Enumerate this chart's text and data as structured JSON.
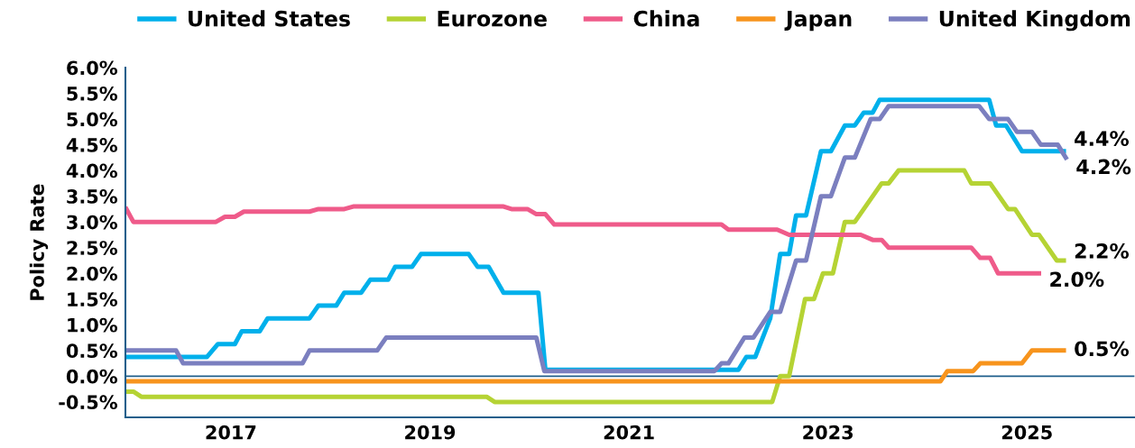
{
  "chart_data": {
    "type": "line",
    "ylabel": "Policy Rate",
    "xlim": [
      2015.94,
      2026.08
    ],
    "xticks": [
      2017,
      2019,
      2021,
      2023,
      2025
    ],
    "ylim": [
      -0.8,
      6.0
    ],
    "yticks": [
      {
        "value": -0.5,
        "label": "-0.5%"
      },
      {
        "value": 0,
        "label": "0.0%"
      },
      {
        "value": 0.5,
        "label": "0.5%"
      },
      {
        "value": 1.0,
        "label": "1.0%"
      },
      {
        "value": 1.5,
        "label": "1.5%"
      },
      {
        "value": 2.0,
        "label": "2.0%"
      },
      {
        "value": 2.5,
        "label": "2.5%"
      },
      {
        "value": 3.0,
        "label": "3.0%"
      },
      {
        "value": 3.5,
        "label": "3.5%"
      },
      {
        "value": 4.0,
        "label": "4.0%"
      },
      {
        "value": 4.5,
        "label": "4.5%"
      },
      {
        "value": 5.0,
        "label": "5.0%"
      },
      {
        "value": 5.5,
        "label": "5.5%"
      },
      {
        "value": 6.0,
        "label": "6.0%"
      }
    ],
    "grid": false,
    "legend": "top",
    "marker": "none",
    "line_style": "solid",
    "ref_lines": [
      {
        "axis": "y",
        "value": 0,
        "color": "#1f5f8b"
      }
    ],
    "series": [
      {
        "name": "United States",
        "color": "#00b0eb",
        "x": [
          2015.95,
          2016.76,
          2016.87,
          2017.04,
          2017.11,
          2017.29,
          2017.37,
          2017.79,
          2017.88,
          2018.06,
          2018.14,
          2018.31,
          2018.4,
          2018.58,
          2018.65,
          2018.82,
          2018.91,
          2019.39,
          2019.48,
          2019.59,
          2019.74,
          2020.09,
          2020.16,
          2022.1,
          2022.18,
          2022.27,
          2022.42,
          2022.52,
          2022.61,
          2022.68,
          2022.78,
          2022.93,
          2023.03,
          2023.17,
          2023.27,
          2023.36,
          2023.45,
          2023.52,
          2024.62,
          2024.69,
          2024.79,
          2024.95,
          2025.37
        ],
        "values": [
          0.375,
          0.375,
          0.625,
          0.625,
          0.875,
          0.875,
          1.125,
          1.125,
          1.375,
          1.375,
          1.625,
          1.625,
          1.875,
          1.875,
          2.125,
          2.125,
          2.375,
          2.375,
          2.125,
          2.125,
          1.625,
          1.625,
          0.125,
          0.125,
          0.375,
          0.375,
          1.125,
          2.375,
          2.375,
          3.125,
          3.125,
          4.375,
          4.375,
          4.875,
          4.875,
          5.125,
          5.125,
          5.375,
          5.375,
          4.875,
          4.875,
          4.375,
          4.375
        ]
      },
      {
        "name": "Eurozone",
        "color": "#b5d334",
        "x": [
          2015.95,
          2016.02,
          2016.1,
          2019.57,
          2019.65,
          2022.44,
          2022.52,
          2022.61,
          2022.77,
          2022.86,
          2022.95,
          2023.05,
          2023.17,
          2023.27,
          2023.54,
          2023.61,
          2023.71,
          2024.37,
          2024.44,
          2024.63,
          2024.81,
          2024.88,
          2025.05,
          2025.12,
          2025.3,
          2025.37
        ],
        "values": [
          -0.3,
          -0.3,
          -0.4,
          -0.4,
          -0.5,
          -0.5,
          0.0,
          0.0,
          1.5,
          1.5,
          2.0,
          2.0,
          3.0,
          3.0,
          3.75,
          3.75,
          4.0,
          4.0,
          3.75,
          3.75,
          3.25,
          3.25,
          2.75,
          2.75,
          2.25,
          2.25
        ]
      },
      {
        "name": "China",
        "color": "#ef5b8a",
        "x": [
          2015.95,
          2016.02,
          2016.85,
          2016.94,
          2017.04,
          2017.13,
          2017.79,
          2017.88,
          2018.14,
          2018.23,
          2019.74,
          2019.82,
          2019.98,
          2020.07,
          2020.16,
          2020.25,
          2021.93,
          2022.0,
          2022.49,
          2022.61,
          2023.33,
          2023.45,
          2023.54,
          2023.61,
          2024.44,
          2024.53,
          2024.63,
          2024.71,
          2025.12
        ],
        "values": [
          3.25,
          3.0,
          3.0,
          3.1,
          3.1,
          3.2,
          3.2,
          3.25,
          3.25,
          3.3,
          3.3,
          3.25,
          3.25,
          3.15,
          3.15,
          2.95,
          2.95,
          2.85,
          2.85,
          2.75,
          2.75,
          2.65,
          2.65,
          2.5,
          2.5,
          2.3,
          2.3,
          2.0,
          2.0
        ]
      },
      {
        "name": "Japan",
        "color": "#f7941d",
        "x": [
          2015.95,
          2024.13,
          2024.2,
          2024.46,
          2024.53,
          2024.95,
          2025.05,
          2025.37
        ],
        "values": [
          -0.1,
          -0.1,
          0.1,
          0.1,
          0.25,
          0.25,
          0.5,
          0.5
        ]
      },
      {
        "name": "United Kingdom",
        "color": "#7b7fbf",
        "x": [
          2015.95,
          2016.45,
          2016.52,
          2017.72,
          2017.79,
          2018.47,
          2018.56,
          2020.07,
          2020.15,
          2021.86,
          2021.93,
          2022.0,
          2022.16,
          2022.25,
          2022.42,
          2022.52,
          2022.68,
          2022.78,
          2022.93,
          2023.03,
          2023.17,
          2023.27,
          2023.43,
          2023.52,
          2023.61,
          2024.52,
          2024.62,
          2024.81,
          2024.9,
          2025.05,
          2025.14,
          2025.31,
          2025.39
        ],
        "values": [
          0.5,
          0.5,
          0.25,
          0.25,
          0.5,
          0.5,
          0.75,
          0.75,
          0.1,
          0.1,
          0.25,
          0.25,
          0.75,
          0.75,
          1.25,
          1.25,
          2.25,
          2.25,
          3.5,
          3.5,
          4.25,
          4.25,
          5.0,
          5.0,
          5.25,
          5.25,
          5.0,
          5.0,
          4.75,
          4.75,
          4.5,
          4.5,
          4.25
        ]
      }
    ],
    "annotations": [
      {
        "text": "4.4%",
        "x": 2025.37,
        "y": 4.375
      },
      {
        "text": "4.2%",
        "x": 2025.39,
        "y": 4.25
      },
      {
        "text": "2.2%",
        "x": 2025.37,
        "y": 2.25
      },
      {
        "text": "2.0%",
        "x": 2025.12,
        "y": 2.0
      },
      {
        "text": "0.5%",
        "x": 2025.37,
        "y": 0.5
      }
    ]
  }
}
